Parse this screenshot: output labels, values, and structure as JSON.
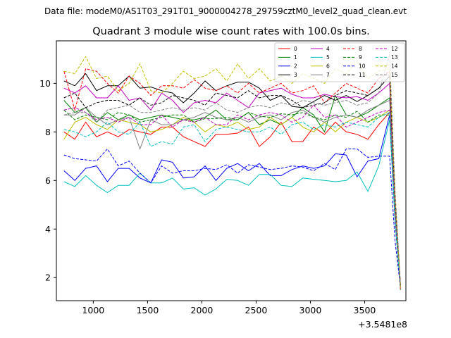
{
  "chart_data": {
    "type": "line",
    "suptitle": "Data file: modeM0/AS1T03_291T01_9000004278_29759cztM0_level2_quad_clean.evt",
    "title": "Quadrant 3 module wise count rates with 100.0s bins.",
    "xlabel": "",
    "ylabel": "",
    "x_offset_label": "+3.5481e8",
    "xlim": [
      660,
      3880
    ],
    "ylim": [
      1.05,
      11.75
    ],
    "xticks": [
      1000,
      1500,
      2000,
      2500,
      3000,
      3500
    ],
    "yticks": [
      2,
      4,
      6,
      8,
      10
    ],
    "grid": false,
    "legend_position": "top-right",
    "x": [
      730,
      830,
      930,
      1030,
      1130,
      1230,
      1330,
      1430,
      1530,
      1630,
      1730,
      1830,
      1930,
      2030,
      2130,
      2230,
      2330,
      2430,
      2530,
      2630,
      2730,
      2830,
      2930,
      3030,
      3130,
      3230,
      3330,
      3430,
      3530,
      3630,
      3730,
      3780,
      3830
    ],
    "series": [
      {
        "name": "0",
        "color": "#ff0000",
        "dash": false,
        "values": [
          8.0,
          7.7,
          8.4,
          7.8,
          8.0,
          7.8,
          8.1,
          8.0,
          7.9,
          8.2,
          8.2,
          7.8,
          7.6,
          7.4,
          7.9,
          7.9,
          7.95,
          8.2,
          7.4,
          7.8,
          8.4,
          7.6,
          7.6,
          8.2,
          7.9,
          8.4,
          8.0,
          7.9,
          7.7,
          8.3,
          8.8,
          4.5,
          1.5
        ]
      },
      {
        "name": "1",
        "color": "#008000",
        "dash": false,
        "values": [
          9.3,
          8.8,
          9.0,
          8.4,
          8.8,
          8.5,
          8.7,
          8.5,
          8.6,
          8.7,
          8.6,
          8.5,
          8.5,
          8.6,
          8.9,
          8.5,
          8.5,
          8.8,
          8.3,
          8.5,
          8.3,
          8.6,
          9.0,
          8.7,
          8.0,
          9.5,
          8.7,
          8.6,
          8.8,
          9.1,
          9.4,
          4.7,
          1.6
        ]
      },
      {
        "name": "2",
        "color": "#0000ff",
        "dash": false,
        "values": [
          6.4,
          6.0,
          6.5,
          6.6,
          5.95,
          6.5,
          6.5,
          6.1,
          5.9,
          6.85,
          6.75,
          6.1,
          6.15,
          6.6,
          6.0,
          6.5,
          6.7,
          6.4,
          6.7,
          6.2,
          6.2,
          6.45,
          6.6,
          6.5,
          6.6,
          7.1,
          7.05,
          6.15,
          6.8,
          6.9,
          8.7,
          4.4,
          1.6
        ]
      },
      {
        "name": "3",
        "color": "#000000",
        "dash": false,
        "values": [
          10.1,
          9.9,
          10.4,
          9.7,
          9.9,
          9.9,
          10.3,
          9.8,
          9.85,
          9.7,
          9.6,
          9.2,
          9.6,
          10.1,
          9.7,
          9.9,
          10.05,
          10.05,
          9.8,
          9.3,
          9.5,
          9.05,
          9.0,
          9.25,
          9.5,
          9.3,
          9.5,
          9.25,
          9.5,
          9.8,
          10.3,
          5.2,
          1.7
        ]
      },
      {
        "name": "4",
        "color": "#c000c0",
        "dash": false,
        "values": [
          9.8,
          9.6,
          9.9,
          9.4,
          9.4,
          9.9,
          9.3,
          9.4,
          8.9,
          9.6,
          9.3,
          8.8,
          9.2,
          9.3,
          9.2,
          9.6,
          9.3,
          9.0,
          9.6,
          9.7,
          9.8,
          9.55,
          9.4,
          9.4,
          9.55,
          9.45,
          9.4,
          9.45,
          9.3,
          9.6,
          10.0,
          5.0,
          1.6
        ]
      },
      {
        "name": "5",
        "color": "#00bfbf",
        "dash": false,
        "values": [
          5.95,
          5.75,
          6.2,
          5.8,
          5.5,
          5.8,
          5.8,
          6.3,
          5.9,
          5.9,
          6.1,
          5.65,
          5.7,
          5.4,
          5.65,
          6.05,
          6.0,
          5.8,
          6.25,
          6.25,
          5.8,
          5.75,
          6.1,
          6.05,
          6.0,
          5.95,
          6.0,
          6.35,
          5.55,
          6.6,
          8.5,
          4.3,
          1.6
        ]
      },
      {
        "name": "6",
        "color": "#bfbf00",
        "dash": false,
        "values": [
          7.7,
          8.4,
          8.6,
          8.3,
          8.1,
          8.5,
          8.4,
          8.3,
          8.0,
          8.1,
          8.3,
          8.6,
          8.4,
          8.0,
          8.3,
          8.2,
          8.4,
          8.1,
          8.2,
          8.6,
          8.3,
          8.6,
          8.2,
          8.0,
          8.4,
          8.0,
          8.4,
          8.6,
          8.4,
          8.6,
          8.9,
          4.5,
          1.6
        ]
      },
      {
        "name": "7",
        "color": "#808080",
        "dash": false,
        "values": [
          8.7,
          8.7,
          9.0,
          8.6,
          8.3,
          8.5,
          8.6,
          7.3,
          8.5,
          8.3,
          8.3,
          8.5,
          8.6,
          8.8,
          8.6,
          8.5,
          8.6,
          8.4,
          8.6,
          8.7,
          8.5,
          8.8,
          8.9,
          8.6,
          8.4,
          8.6,
          8.7,
          8.6,
          8.9,
          9.1,
          9.3,
          4.7,
          1.6
        ]
      },
      {
        "name": "8",
        "color": "#ff0000",
        "dash": true,
        "values": [
          10.5,
          8.9,
          10.6,
          10.5,
          10.0,
          9.6,
          10.3,
          10.0,
          9.5,
          9.9,
          9.9,
          9.8,
          10.15,
          9.8,
          9.7,
          9.9,
          9.6,
          10.0,
          9.6,
          9.8,
          10.0,
          9.6,
          9.7,
          9.9,
          9.2,
          9.6,
          10.0,
          9.8,
          9.6,
          10.2,
          10.5,
          5.3,
          1.7
        ]
      },
      {
        "name": "9",
        "color": "#008000",
        "dash": true,
        "values": [
          8.9,
          8.5,
          8.7,
          8.6,
          8.5,
          8.8,
          8.7,
          8.4,
          8.5,
          8.6,
          8.7,
          8.7,
          8.4,
          8.55,
          8.55,
          8.6,
          8.5,
          8.8,
          8.65,
          8.6,
          8.75,
          8.7,
          8.8,
          8.6,
          8.5,
          8.7,
          8.6,
          8.85,
          8.4,
          8.7,
          8.7,
          4.4,
          1.5
        ]
      },
      {
        "name": "10",
        "color": "#0000ff",
        "dash": true,
        "values": [
          7.05,
          6.9,
          6.85,
          6.8,
          7.3,
          6.6,
          6.8,
          6.3,
          5.9,
          6.6,
          6.3,
          6.4,
          6.4,
          6.5,
          6.45,
          6.65,
          6.3,
          6.65,
          6.55,
          6.45,
          6.5,
          6.6,
          6.55,
          6.4,
          6.7,
          6.45,
          7.3,
          7.3,
          6.95,
          7.0,
          7.0,
          3.5,
          1.6
        ]
      },
      {
        "name": "11",
        "color": "#000000",
        "dash": true,
        "values": [
          9.4,
          9.6,
          9.0,
          9.2,
          9.3,
          9.3,
          9.1,
          9.4,
          9.1,
          9.2,
          9.5,
          9.4,
          9.3,
          9.1,
          9.6,
          9.5,
          9.4,
          9.7,
          9.4,
          9.5,
          9.5,
          9.3,
          9.0,
          9.1,
          9.2,
          9.5,
          9.7,
          9.6,
          9.5,
          9.8,
          10.3,
          5.2,
          1.7
        ]
      },
      {
        "name": "12",
        "color": "#c000c0",
        "dash": true,
        "values": [
          8.9,
          9.0,
          8.8,
          8.5,
          8.6,
          8.4,
          8.6,
          8.3,
          8.3,
          8.7,
          8.2,
          8.5,
          8.4,
          8.6,
          8.3,
          8.3,
          8.7,
          8.5,
          8.7,
          8.8,
          8.7,
          8.4,
          8.6,
          9.1,
          8.6,
          8.7,
          8.2,
          8.4,
          8.6,
          8.8,
          8.9,
          4.5,
          1.6
        ]
      },
      {
        "name": "13",
        "color": "#00bfbf",
        "dash": true,
        "values": [
          8.1,
          8.0,
          7.8,
          8.0,
          8.4,
          8.0,
          7.9,
          8.4,
          7.4,
          7.6,
          7.5,
          8.2,
          8.3,
          7.6,
          8.1,
          8.2,
          8.1,
          8.0,
          8.0,
          8.2,
          7.9,
          8.3,
          8.4,
          8.1,
          8.3,
          8.2,
          8.4,
          8.3,
          8.2,
          8.6,
          8.8,
          4.4,
          1.6
        ]
      },
      {
        "name": "14",
        "color": "#bfbf00",
        "dash": true,
        "values": [
          10.5,
          10.4,
          11.1,
          10.2,
          10.3,
          9.7,
          10.0,
          10.8,
          9.7,
          9.6,
          10.0,
          10.5,
          10.2,
          10.3,
          10.6,
          10.1,
          10.8,
          10.2,
          10.6,
          10.1,
          10.3,
          10.0,
          10.4,
          10.2,
          10.0,
          10.6,
          10.4,
          10.9,
          10.2,
          10.5,
          10.6,
          5.3,
          1.6
        ]
      },
      {
        "name": "15",
        "color": "#808080",
        "dash": true,
        "values": [
          8.7,
          8.8,
          8.8,
          8.4,
          8.9,
          9.0,
          9.1,
          8.8,
          8.8,
          8.9,
          9.0,
          8.9,
          9.0,
          8.9,
          9.2,
          8.9,
          8.8,
          9.0,
          9.1,
          9.0,
          9.2,
          9.1,
          9.3,
          9.2,
          9.1,
          9.2,
          9.3,
          9.1,
          9.2,
          9.6,
          11.2,
          5.6,
          1.7
        ]
      }
    ]
  }
}
